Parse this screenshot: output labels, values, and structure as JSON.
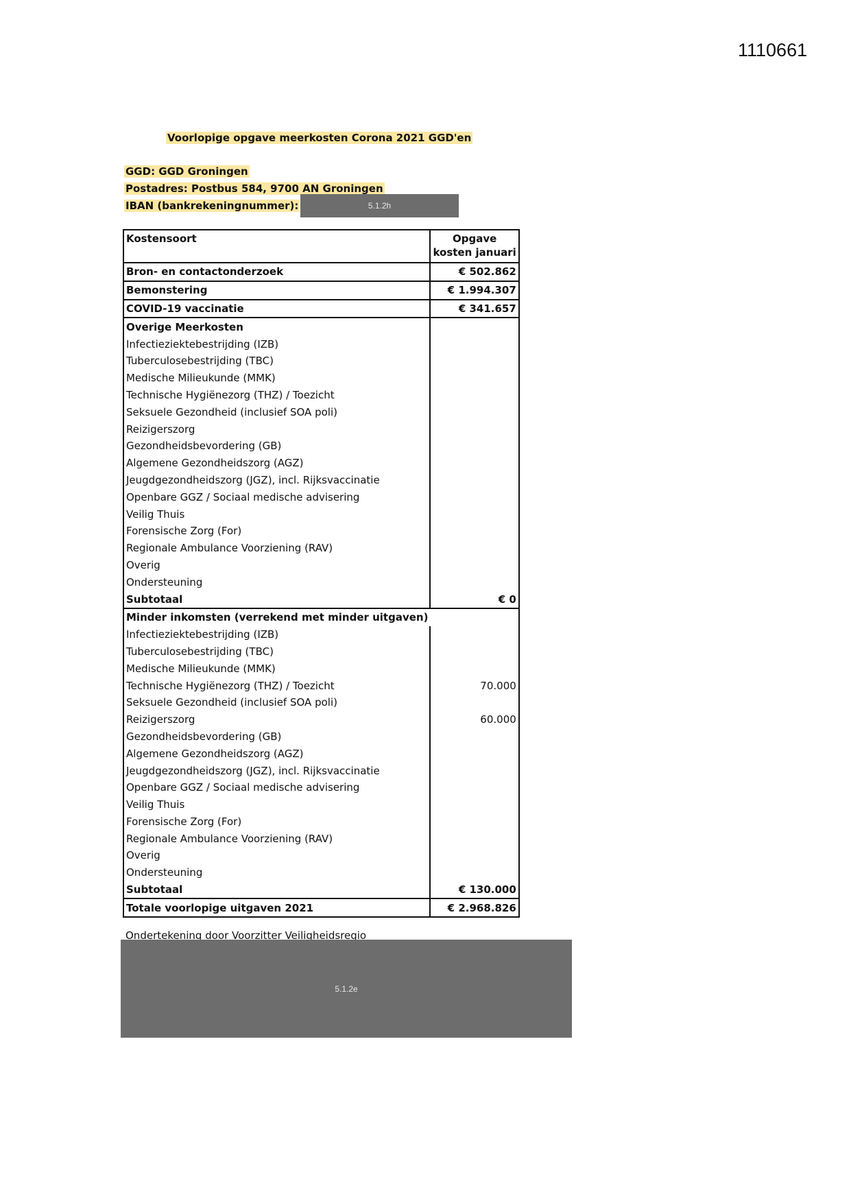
{
  "document_number": "1110661",
  "title": "Voorlopige opgave meerkosten Corona 2021 GGD'en",
  "ggd": "GGD: GGD Groningen",
  "postadres": "Postadres: Postbus 584, 9700 AN Groningen",
  "iban_label": "IBAN (bankrekeningnummer):",
  "iban_redaction": "5.1.2h",
  "table": {
    "header": {
      "col1": "Kostensoort",
      "col2_line1": "Opgave",
      "col2_line2": "kosten januari"
    },
    "main_rows": [
      {
        "label": "Bron- en contactonderzoek",
        "value": "€ 502.862"
      },
      {
        "label": "Bemonstering",
        "value": "€ 1.994.307"
      },
      {
        "label": "COVID-19 vaccinatie",
        "value": "€ 341.657"
      }
    ],
    "overige": {
      "heading": "Overige Meerkosten",
      "rows": [
        {
          "label": "Infectieziektebestrijding (IZB)",
          "value": ""
        },
        {
          "label": "Tuberculosebestrijding (TBC)",
          "value": ""
        },
        {
          "label": "Medische Milieukunde (MMK)",
          "value": ""
        },
        {
          "label": "Technische Hygiënezorg (THZ) / Toezicht",
          "value": ""
        },
        {
          "label": "Seksuele Gezondheid (inclusief SOA poli)",
          "value": ""
        },
        {
          "label": "Reizigerszorg",
          "value": ""
        },
        {
          "label": "Gezondheidsbevordering (GB)",
          "value": ""
        },
        {
          "label": "Algemene Gezondheidszorg (AGZ)",
          "value": ""
        },
        {
          "label": "Jeugdgezondheidszorg (JGZ), incl. Rijksvaccinatie",
          "value": ""
        },
        {
          "label": "Openbare GGZ / Sociaal medische advisering",
          "value": ""
        },
        {
          "label": "Veilig Thuis",
          "value": ""
        },
        {
          "label": "Forensische Zorg (For)",
          "value": ""
        },
        {
          "label": "Regionale Ambulance Voorziening (RAV)",
          "value": ""
        },
        {
          "label": "Overig",
          "value": ""
        },
        {
          "label": "Ondersteuning",
          "value": ""
        }
      ],
      "subtotal_label": "Subtotaal",
      "subtotal_value": "€ 0"
    },
    "minder": {
      "heading": "Minder inkomsten (verrekend met minder uitgaven)",
      "rows": [
        {
          "label": "Infectieziektebestrijding (IZB)",
          "value": ""
        },
        {
          "label": "Tuberculosebestrijding (TBC)",
          "value": ""
        },
        {
          "label": "Medische Milieukunde (MMK)",
          "value": ""
        },
        {
          "label": "Technische Hygiënezorg (THZ) / Toezicht",
          "value": "70.000"
        },
        {
          "label": "Seksuele Gezondheid (inclusief SOA poli)",
          "value": ""
        },
        {
          "label": "Reizigerszorg",
          "value": "60.000"
        },
        {
          "label": "Gezondheidsbevordering (GB)",
          "value": ""
        },
        {
          "label": "Algemene Gezondheidszorg (AGZ)",
          "value": ""
        },
        {
          "label": "Jeugdgezondheidszorg (JGZ), incl. Rijksvaccinatie",
          "value": ""
        },
        {
          "label": "Openbare GGZ / Sociaal medische advisering",
          "value": ""
        },
        {
          "label": "Veilig Thuis",
          "value": ""
        },
        {
          "label": "Forensische Zorg (For)",
          "value": ""
        },
        {
          "label": "Regionale Ambulance Voorziening (RAV)",
          "value": ""
        },
        {
          "label": "Overig",
          "value": ""
        },
        {
          "label": "Ondersteuning",
          "value": ""
        }
      ],
      "subtotal_label": "Subtotaal",
      "subtotal_value": "€ 130.000"
    },
    "total_label": "Totale voorlopige uitgaven 2021",
    "total_value": "€ 2.968.826"
  },
  "signature_label": "Ondertekening door Voorzitter Veiligheidsregio",
  "signature_redaction": "5.1.2e",
  "colors": {
    "highlight": "#fbe7a1",
    "redaction": "#6d6d6d"
  }
}
